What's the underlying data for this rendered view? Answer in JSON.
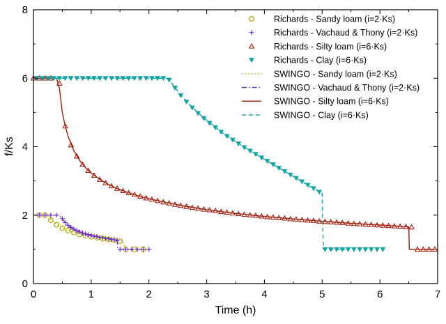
{
  "chart_data": {
    "type": "line",
    "title": "",
    "xlabel": "Time (h)",
    "ylabel": "f/Ks",
    "xlim": [
      0,
      7
    ],
    "ylim": [
      0,
      8
    ],
    "xticks": [
      0,
      1,
      2,
      3,
      4,
      5,
      6,
      7
    ],
    "yticks": [
      0,
      2,
      4,
      6,
      8
    ],
    "grid": false,
    "legend_position": "top-right",
    "colors": {
      "sandy": "#b5a800",
      "vachaud": "#6a2fc9",
      "silty": "#a01e0c",
      "clay": "#12a3a3"
    },
    "series": [
      {
        "name": "Richards - Sandy loam (i=2·Ks)",
        "kind": "markers",
        "marker": "circle",
        "color_key": "sandy",
        "points": [
          [
            0.1,
            2.0
          ],
          [
            0.2,
            2.0
          ],
          [
            0.3,
            1.85
          ],
          [
            0.4,
            1.72
          ],
          [
            0.5,
            1.62
          ],
          [
            0.6,
            1.55
          ],
          [
            0.7,
            1.49
          ],
          [
            0.8,
            1.44
          ],
          [
            0.9,
            1.4
          ],
          [
            1.0,
            1.37
          ],
          [
            1.1,
            1.34
          ],
          [
            1.2,
            1.31
          ],
          [
            1.3,
            1.29
          ],
          [
            1.4,
            1.27
          ],
          [
            1.5,
            1.24
          ],
          [
            1.6,
            1.0
          ],
          [
            1.75,
            1.0
          ],
          [
            1.9,
            1.0
          ]
        ]
      },
      {
        "name": "Richards - Vachaud & Thony (i=2·Ks)",
        "kind": "markers",
        "marker": "plus",
        "color_key": "vachaud",
        "points": [
          [
            0.1,
            2.0
          ],
          [
            0.2,
            2.0
          ],
          [
            0.3,
            2.0
          ],
          [
            0.4,
            2.0
          ],
          [
            0.5,
            1.9
          ],
          [
            0.55,
            1.78
          ],
          [
            0.6,
            1.7
          ],
          [
            0.65,
            1.64
          ],
          [
            0.7,
            1.59
          ],
          [
            0.75,
            1.55
          ],
          [
            0.8,
            1.51
          ],
          [
            0.85,
            1.48
          ],
          [
            0.9,
            1.45
          ],
          [
            0.95,
            1.43
          ],
          [
            1.0,
            1.41
          ],
          [
            1.05,
            1.39
          ],
          [
            1.1,
            1.37
          ],
          [
            1.15,
            1.35
          ],
          [
            1.2,
            1.34
          ],
          [
            1.25,
            1.32
          ],
          [
            1.3,
            1.31
          ],
          [
            1.35,
            1.29
          ],
          [
            1.4,
            1.28
          ],
          [
            1.45,
            1.26
          ],
          [
            1.5,
            1.0
          ],
          [
            1.6,
            1.0
          ],
          [
            1.7,
            1.0
          ],
          [
            1.8,
            1.0
          ],
          [
            1.9,
            1.0
          ],
          [
            2.0,
            1.0
          ]
        ]
      },
      {
        "name": "Richards - Silty loam (i=6·Ks)",
        "kind": "markers",
        "marker": "triangle-up",
        "color_key": "silty",
        "points": [
          [
            0.0,
            6.0
          ],
          [
            0.1,
            6.0
          ],
          [
            0.2,
            6.0
          ],
          [
            0.3,
            6.0
          ],
          [
            0.45,
            5.85
          ],
          [
            0.55,
            4.6
          ],
          [
            0.65,
            4.05
          ],
          [
            0.75,
            3.72
          ],
          [
            0.85,
            3.48
          ],
          [
            0.95,
            3.3
          ],
          [
            1.05,
            3.16
          ],
          [
            1.15,
            3.04
          ],
          [
            1.25,
            2.94
          ],
          [
            1.35,
            2.85
          ],
          [
            1.45,
            2.78
          ],
          [
            1.55,
            2.71
          ],
          [
            1.65,
            2.65
          ],
          [
            1.75,
            2.6
          ],
          [
            1.85,
            2.55
          ],
          [
            1.95,
            2.5
          ],
          [
            2.05,
            2.46
          ],
          [
            2.15,
            2.42
          ],
          [
            2.25,
            2.38
          ],
          [
            2.35,
            2.35
          ],
          [
            2.45,
            2.31
          ],
          [
            2.55,
            2.28
          ],
          [
            2.65,
            2.25
          ],
          [
            2.75,
            2.22
          ],
          [
            2.85,
            2.2
          ],
          [
            2.95,
            2.17
          ],
          [
            3.05,
            2.15
          ],
          [
            3.15,
            2.13
          ],
          [
            3.25,
            2.1
          ],
          [
            3.35,
            2.08
          ],
          [
            3.45,
            2.06
          ],
          [
            3.55,
            2.04
          ],
          [
            3.65,
            2.02
          ],
          [
            3.75,
            2.0
          ],
          [
            3.85,
            1.99
          ],
          [
            3.95,
            1.97
          ],
          [
            4.05,
            1.95
          ],
          [
            4.15,
            1.94
          ],
          [
            4.25,
            1.92
          ],
          [
            4.35,
            1.91
          ],
          [
            4.45,
            1.89
          ],
          [
            4.55,
            1.88
          ],
          [
            4.65,
            1.86
          ],
          [
            4.75,
            1.85
          ],
          [
            4.85,
            1.84
          ],
          [
            4.95,
            1.82
          ],
          [
            5.05,
            1.81
          ],
          [
            5.15,
            1.8
          ],
          [
            5.25,
            1.79
          ],
          [
            5.35,
            1.78
          ],
          [
            5.45,
            1.76
          ],
          [
            5.55,
            1.75
          ],
          [
            5.65,
            1.74
          ],
          [
            5.75,
            1.73
          ],
          [
            5.85,
            1.72
          ],
          [
            5.95,
            1.71
          ],
          [
            6.05,
            1.7
          ],
          [
            6.15,
            1.69
          ],
          [
            6.25,
            1.68
          ],
          [
            6.35,
            1.67
          ],
          [
            6.45,
            1.66
          ],
          [
            6.55,
            1.65
          ],
          [
            6.65,
            1.0
          ],
          [
            6.75,
            1.0
          ],
          [
            6.85,
            1.0
          ],
          [
            6.95,
            1.0
          ]
        ]
      },
      {
        "name": "Richards - Clay (i=6·Ks)",
        "kind": "markers",
        "marker": "triangle-down",
        "color_key": "clay",
        "points": [
          [
            0.05,
            6.0
          ],
          [
            0.15,
            6.0
          ],
          [
            0.25,
            6.0
          ],
          [
            0.35,
            6.0
          ],
          [
            0.45,
            6.0
          ],
          [
            0.55,
            6.0
          ],
          [
            0.65,
            6.0
          ],
          [
            0.75,
            6.0
          ],
          [
            0.85,
            6.0
          ],
          [
            0.95,
            6.0
          ],
          [
            1.05,
            6.0
          ],
          [
            1.15,
            6.0
          ],
          [
            1.25,
            6.0
          ],
          [
            1.35,
            6.0
          ],
          [
            1.45,
            6.0
          ],
          [
            1.55,
            6.0
          ],
          [
            1.65,
            6.0
          ],
          [
            1.75,
            6.0
          ],
          [
            1.85,
            6.0
          ],
          [
            1.95,
            6.0
          ],
          [
            2.05,
            6.0
          ],
          [
            2.15,
            6.0
          ],
          [
            2.25,
            6.0
          ],
          [
            2.35,
            5.95
          ],
          [
            2.45,
            5.72
          ],
          [
            2.55,
            5.5
          ],
          [
            2.65,
            5.31
          ],
          [
            2.75,
            5.14
          ],
          [
            2.85,
            4.98
          ],
          [
            2.95,
            4.83
          ],
          [
            3.05,
            4.69
          ],
          [
            3.15,
            4.56
          ],
          [
            3.25,
            4.43
          ],
          [
            3.35,
            4.31
          ],
          [
            3.45,
            4.2
          ],
          [
            3.55,
            4.09
          ],
          [
            3.65,
            3.98
          ],
          [
            3.75,
            3.88
          ],
          [
            3.85,
            3.78
          ],
          [
            3.95,
            3.68
          ],
          [
            4.05,
            3.58
          ],
          [
            4.15,
            3.48
          ],
          [
            4.25,
            3.38
          ],
          [
            4.35,
            3.28
          ],
          [
            4.45,
            3.18
          ],
          [
            4.55,
            3.08
          ],
          [
            4.65,
            2.98
          ],
          [
            4.75,
            2.88
          ],
          [
            4.85,
            2.78
          ],
          [
            4.95,
            2.68
          ],
          [
            5.05,
            1.0
          ],
          [
            5.15,
            1.0
          ],
          [
            5.25,
            1.0
          ],
          [
            5.35,
            1.0
          ],
          [
            5.45,
            1.0
          ],
          [
            5.55,
            1.0
          ],
          [
            5.65,
            1.0
          ],
          [
            5.75,
            1.0
          ],
          [
            5.85,
            1.0
          ],
          [
            5.95,
            1.0
          ],
          [
            6.05,
            1.0
          ]
        ]
      },
      {
        "name": "SWINGO - Sandy loam (i=2·Ks)",
        "kind": "line",
        "dash": "dotted",
        "color_key": "sandy",
        "points": [
          [
            0.0,
            2.0
          ],
          [
            0.25,
            2.0
          ],
          [
            0.3,
            1.87
          ],
          [
            0.4,
            1.73
          ],
          [
            0.5,
            1.63
          ],
          [
            0.6,
            1.56
          ],
          [
            0.7,
            1.5
          ],
          [
            0.8,
            1.45
          ],
          [
            0.9,
            1.41
          ],
          [
            1.0,
            1.37
          ],
          [
            1.1,
            1.34
          ],
          [
            1.2,
            1.31
          ],
          [
            1.3,
            1.29
          ],
          [
            1.4,
            1.27
          ],
          [
            1.55,
            1.24
          ],
          [
            1.6,
            1.0
          ],
          [
            1.9,
            1.0
          ]
        ]
      },
      {
        "name": "SWINGO - Vachaud & Thony (i=2·Ks)",
        "kind": "line",
        "dash": "dashdot",
        "color_key": "vachaud",
        "points": [
          [
            0.0,
            2.0
          ],
          [
            0.45,
            2.0
          ],
          [
            0.5,
            1.88
          ],
          [
            0.6,
            1.71
          ],
          [
            0.7,
            1.59
          ],
          [
            0.8,
            1.51
          ],
          [
            0.9,
            1.45
          ],
          [
            1.0,
            1.41
          ],
          [
            1.1,
            1.37
          ],
          [
            1.2,
            1.34
          ],
          [
            1.3,
            1.31
          ],
          [
            1.45,
            1.27
          ],
          [
            1.46,
            1.0
          ],
          [
            2.0,
            1.0
          ]
        ]
      },
      {
        "name": "SWINGO - Silty loam (i=6·Ks)",
        "kind": "line",
        "dash": "solid",
        "color_key": "silty",
        "points": [
          [
            0.0,
            6.0
          ],
          [
            0.4,
            6.0
          ],
          [
            0.45,
            5.7
          ],
          [
            0.5,
            5.0
          ],
          [
            0.55,
            4.6
          ],
          [
            0.6,
            4.3
          ],
          [
            0.7,
            3.88
          ],
          [
            0.8,
            3.6
          ],
          [
            0.9,
            3.39
          ],
          [
            1.0,
            3.23
          ],
          [
            1.2,
            2.99
          ],
          [
            1.4,
            2.81
          ],
          [
            1.6,
            2.68
          ],
          [
            1.8,
            2.57
          ],
          [
            2.0,
            2.48
          ],
          [
            2.3,
            2.37
          ],
          [
            2.6,
            2.27
          ],
          [
            3.0,
            2.16
          ],
          [
            3.5,
            2.05
          ],
          [
            4.0,
            1.96
          ],
          [
            4.5,
            1.89
          ],
          [
            5.0,
            1.82
          ],
          [
            5.5,
            1.76
          ],
          [
            6.0,
            1.71
          ],
          [
            6.5,
            1.66
          ],
          [
            6.51,
            1.0
          ],
          [
            6.95,
            1.0
          ]
        ]
      },
      {
        "name": "SWINGO - Clay (i=6·Ks)",
        "kind": "line",
        "dash": "dashed",
        "color_key": "clay",
        "points": [
          [
            0.0,
            6.0
          ],
          [
            2.3,
            6.0
          ],
          [
            2.35,
            5.95
          ],
          [
            2.5,
            5.62
          ],
          [
            2.7,
            5.23
          ],
          [
            2.9,
            4.91
          ],
          [
            3.1,
            4.63
          ],
          [
            3.3,
            4.37
          ],
          [
            3.5,
            4.15
          ],
          [
            3.7,
            3.93
          ],
          [
            3.9,
            3.73
          ],
          [
            4.1,
            3.53
          ],
          [
            4.3,
            3.33
          ],
          [
            4.5,
            3.13
          ],
          [
            4.7,
            2.93
          ],
          [
            4.9,
            2.73
          ],
          [
            5.0,
            2.63
          ],
          [
            5.02,
            1.0
          ],
          [
            5.4,
            1.0
          ]
        ]
      }
    ]
  }
}
